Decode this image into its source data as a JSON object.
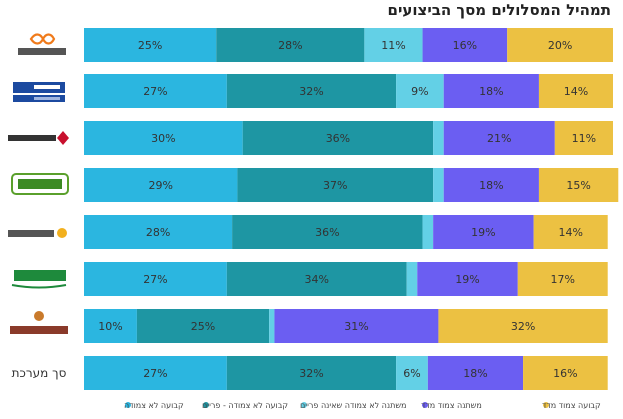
{
  "chart_data": {
    "type": "bar",
    "orientation": "horizontal",
    "stacked": true,
    "title": "תמהיל המסלולים מסך הביצועים",
    "categories": [
      "מזרחי טפחות",
      "לאומי",
      "בנק הפועלים",
      "דיסקונט",
      "הבינלאומי",
      "מרכנתיל",
      "בנק ירושלים",
      "סך מערכת"
    ],
    "series": [
      {
        "name": "קבועה לא צמודה",
        "values": [
          25,
          27,
          30,
          29,
          28,
          27,
          10,
          27
        ],
        "labels": [
          "25%",
          "27%",
          "30%",
          "29%",
          "28%",
          "27%",
          "10%",
          "27%"
        ]
      },
      {
        "name": "קבועה לא צמודה - פריים",
        "values": [
          28,
          32,
          36,
          37,
          36,
          34,
          25,
          32
        ],
        "labels": [
          "28%",
          "32%",
          "36%",
          "37%",
          "36%",
          "34%",
          "25%",
          "32%"
        ]
      },
      {
        "name": "משתנה לא צמודה שאינה פריים",
        "values": [
          11,
          9,
          2,
          2,
          2,
          2,
          1,
          6
        ],
        "labels": [
          "11%",
          "9%",
          "",
          "",
          "",
          "",
          "",
          "6%"
        ]
      },
      {
        "name": "משתנה צמוד מדד",
        "values": [
          16,
          18,
          21,
          18,
          19,
          19,
          31,
          18
        ],
        "labels": [
          "16%",
          "18%",
          "21%",
          "18%",
          "19%",
          "19%",
          "31%",
          "18%"
        ]
      },
      {
        "name": "קבועה צמוד מדד",
        "values": [
          20,
          14,
          11,
          15,
          14,
          17,
          32,
          16
        ],
        "labels": [
          "20%",
          "14%",
          "11%",
          "15%",
          "14%",
          "17%",
          "32%",
          "16%"
        ]
      }
    ],
    "xlim": [
      0,
      100
    ],
    "grid": false,
    "legend_position": "bottom",
    "colors": [
      "#2bb6e0",
      "#1e96a3",
      "#63d0e6",
      "#6b5ef2",
      "#ecc142"
    ],
    "label_color": "#333333"
  }
}
